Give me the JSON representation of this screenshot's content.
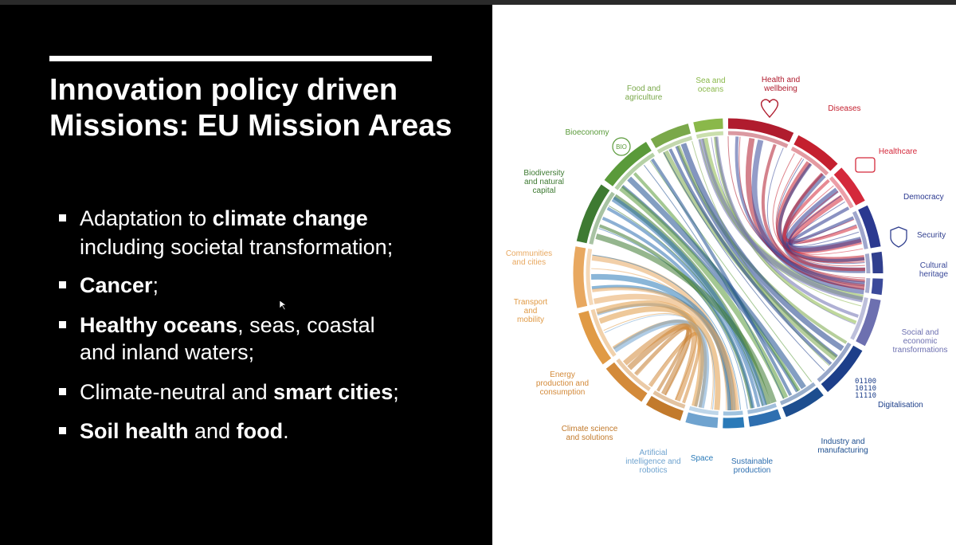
{
  "slide": {
    "title": [
      "Innovation policy driven",
      "Missions: EU Mission Areas"
    ],
    "bullets": [
      {
        "lines": [
          [
            {
              "text": "Adaptation to ",
              "bold": false
            },
            {
              "text": "climate change",
              "bold": true
            }
          ],
          [
            {
              "text": "including societal transformation;",
              "bold": false
            }
          ]
        ]
      },
      {
        "lines": [
          [
            {
              "text": "Cancer",
              "bold": true
            },
            {
              "text": ";",
              "bold": false
            }
          ]
        ]
      },
      {
        "lines": [
          [
            {
              "text": "Healthy oceans",
              "bold": true
            },
            {
              "text": ", seas, coastal",
              "bold": false
            }
          ],
          [
            {
              "text": "and inland waters;",
              "bold": false
            }
          ]
        ]
      },
      {
        "lines": [
          [
            {
              "text": "Climate-neutral and ",
              "bold": false
            },
            {
              "text": "smart cities",
              "bold": true
            },
            {
              "text": ";",
              "bold": false
            }
          ]
        ]
      },
      {
        "lines": [
          [
            {
              "text": "Soil health",
              "bold": true
            },
            {
              "text": " and ",
              "bold": false
            },
            {
              "text": "food",
              "bold": true
            },
            {
              "text": ".",
              "bold": false
            }
          ]
        ]
      }
    ]
  },
  "diagram": {
    "nodes": [
      {
        "label": [
          "Health and",
          "wellbeing"
        ],
        "color": "#b01c2e"
      },
      {
        "label": [
          "Diseases"
        ],
        "color": "#c4202f"
      },
      {
        "label": [
          "Healthcare"
        ],
        "color": "#d4293b"
      },
      {
        "label": [
          "Democracy"
        ],
        "color": "#2b3990"
      },
      {
        "label": [
          "Security"
        ],
        "color": "#303f8e"
      },
      {
        "label": [
          "Cultural",
          "heritage"
        ],
        "color": "#3b4a9a"
      },
      {
        "label": [
          "Social and",
          "economic",
          "transformations"
        ],
        "color": "#6d70b0"
      },
      {
        "label": [
          "Digitalisation"
        ],
        "color": "#1d3f8a"
      },
      {
        "label": [
          "Industry and",
          "manufacturing"
        ],
        "color": "#1d4e8f"
      },
      {
        "label": [
          "Sustainable",
          "production"
        ],
        "color": "#2e6fb0"
      },
      {
        "label": [
          "Space"
        ],
        "color": "#2a7ab8"
      },
      {
        "label": [
          "Artificial",
          "intelligence and",
          "robotics"
        ],
        "color": "#6fa3cf"
      },
      {
        "label": [
          "Climate science",
          "and solutions"
        ],
        "color": "#c27a2c"
      },
      {
        "label": [
          "Energy",
          "production and",
          "consumption"
        ],
        "color": "#d38a3a"
      },
      {
        "label": [
          "Transport",
          "and",
          "mobility"
        ],
        "color": "#e09a45"
      },
      {
        "label": [
          "Communities",
          "and cities"
        ],
        "color": "#e8a860"
      },
      {
        "label": [
          "Biodiversity",
          "and natural",
          "capital"
        ],
        "color": "#3e7a32"
      },
      {
        "label": [
          "Bioeconomy"
        ],
        "color": "#5a9a3a"
      },
      {
        "label": [
          "Food and",
          "agriculture"
        ],
        "color": "#7aa84a"
      },
      {
        "label": [
          "Sea and",
          "oceans"
        ],
        "color": "#8ab84a"
      }
    ],
    "icon_texts": {
      "bio": "BIO",
      "binary": [
        "01100",
        "10110",
        "11110"
      ]
    }
  }
}
